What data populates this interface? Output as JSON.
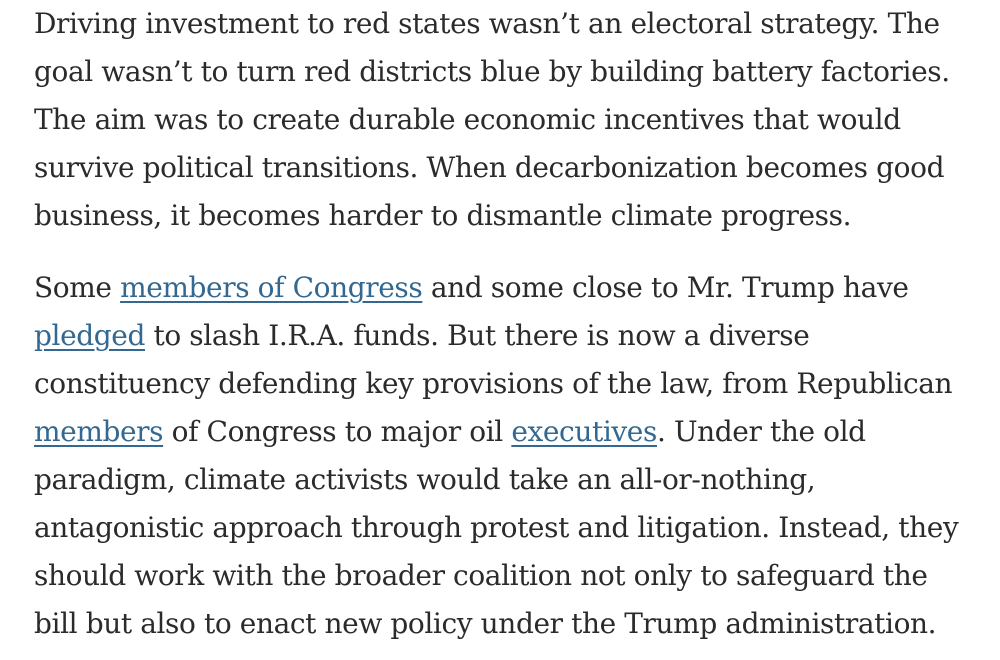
{
  "article": {
    "paragraph_1": {
      "lines": [
        "Driving investment to red states wasn’t an electoral strategy. The",
        "goal wasn’t to turn red districts blue by building battery factories.",
        "The aim was to create durable economic incentives that would",
        "survive political transitions. When decarbonization becomes good",
        "business, it becomes harder to dismantle climate progress."
      ]
    },
    "paragraph_2": {
      "line_1": {
        "before": "Some ",
        "link": "members of Congress",
        "after": " and some close to Mr. Trump have"
      },
      "line_2": {
        "link": "pledged",
        "after": " to slash I.R.A. funds. But there is now a diverse"
      },
      "line_3": "constituency defending key provisions of the law, from Republican",
      "line_4": {
        "link": "members",
        "middle": " of Congress to major oil ",
        "link_2": "executives",
        "after": ". Under the old"
      },
      "line_5": "paradigm, climate activists would take an all-or-nothing,",
      "line_6": "antagonistic approach through protest and litigation. Instead, they",
      "line_7": "should work with the broader coalition not only to safeguard the",
      "line_8": "bill but also to enact new policy under the Trump administration."
    },
    "colors": {
      "text": "#2b2b2b",
      "link": "#326891",
      "background": "#ffffff"
    }
  }
}
